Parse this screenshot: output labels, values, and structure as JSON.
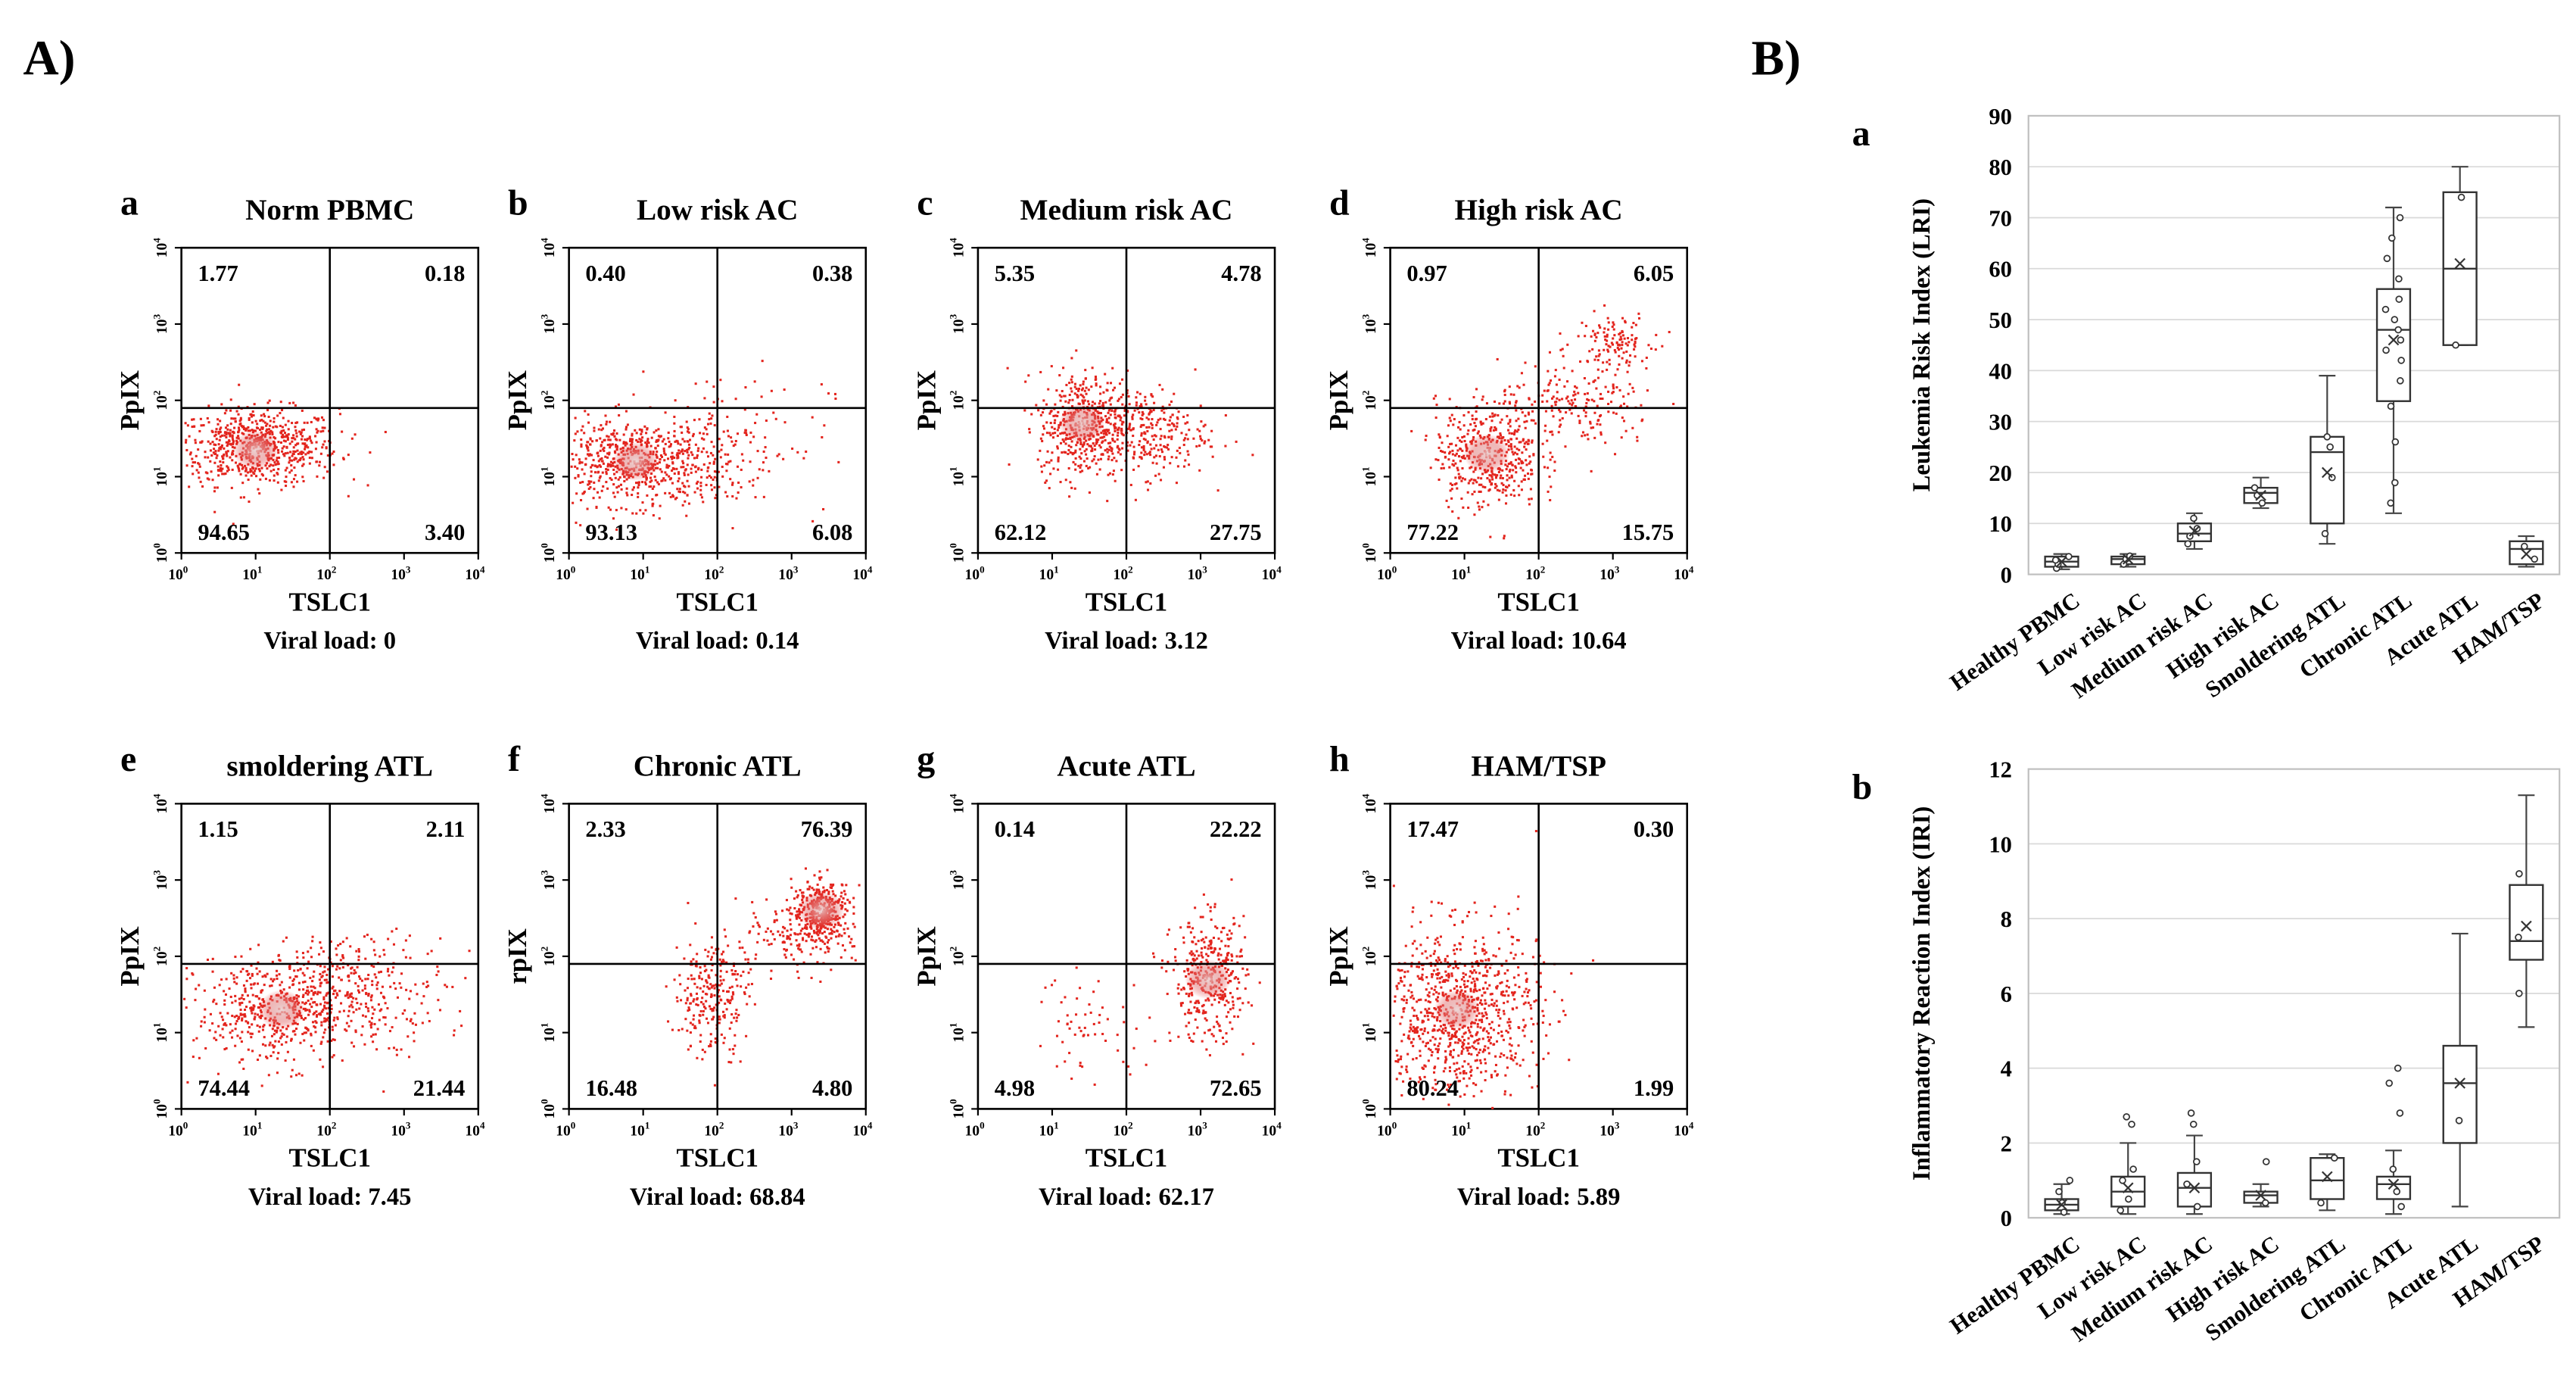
{
  "panel_labels": {
    "A": "A)",
    "B": "B)"
  },
  "flow": {
    "xlabel": "TSLC1",
    "ylabel_default": "PpIX",
    "ylabel_f": "rpIX",
    "viral_prefix": "Viral load:",
    "tick_exponents": [
      "0",
      "1",
      "2",
      "3",
      "4"
    ],
    "panels": [
      {
        "id": "a",
        "title": "Norm PBMC",
        "ylabel": "PpIX",
        "quadrants": {
          "ul": "1.77",
          "ur": "0.18",
          "ll": "94.65",
          "lr": "3.40"
        },
        "viral": "0"
      },
      {
        "id": "b",
        "title": "Low risk AC",
        "ylabel": "PpIX",
        "quadrants": {
          "ul": "0.40",
          "ur": "0.38",
          "ll": "93.13",
          "lr": "6.08"
        },
        "viral": "0.14"
      },
      {
        "id": "c",
        "title": "Medium risk AC",
        "ylabel": "PpIX",
        "quadrants": {
          "ul": "5.35",
          "ur": "4.78",
          "ll": "62.12",
          "lr": "27.75"
        },
        "viral": "3.12"
      },
      {
        "id": "d",
        "title": "High risk AC",
        "ylabel": "PpIX",
        "quadrants": {
          "ul": "0.97",
          "ur": "6.05",
          "ll": "77.22",
          "lr": "15.75"
        },
        "viral": "10.64"
      },
      {
        "id": "e",
        "title": "smoldering ATL",
        "ylabel": "PpIX",
        "quadrants": {
          "ul": "1.15",
          "ur": "2.11",
          "ll": "74.44",
          "lr": "21.44"
        },
        "viral": "7.45"
      },
      {
        "id": "f",
        "title": "Chronic ATL",
        "ylabel": "rpIX",
        "quadrants": {
          "ul": "2.33",
          "ur": "76.39",
          "ll": "16.48",
          "lr": "4.80"
        },
        "viral": "68.84"
      },
      {
        "id": "g",
        "title": "Acute ATL",
        "ylabel": "PpIX",
        "quadrants": {
          "ul": "0.14",
          "ur": "22.22",
          "ll": "4.98",
          "lr": "72.65"
        },
        "viral": "62.17"
      },
      {
        "id": "h",
        "title": "HAM/TSP",
        "ylabel": "PpIX",
        "quadrants": {
          "ul": "17.47",
          "ur": "0.30",
          "ll": "80.24",
          "lr": "1.99"
        },
        "viral": "5.89"
      }
    ]
  },
  "chart_data": [
    {
      "type": "box",
      "id": "a",
      "ylabel": "Leukemia Risk Index (LRI)",
      "ylim": [
        0,
        90
      ],
      "yticks": [
        0,
        10,
        20,
        30,
        40,
        50,
        60,
        70,
        80,
        90
      ],
      "categories": [
        "Healthy PBMC",
        "Low risk AC",
        "Medium risk AC",
        "High risk AC",
        "Smoldering ATL",
        "Chronic ATL",
        "Acute ATL",
        "HAM/TSP"
      ],
      "boxes": [
        {
          "min": 1,
          "q1": 1.5,
          "median": 2.5,
          "q3": 3.5,
          "max": 4,
          "mean": 2.5,
          "points": [
            1.2,
            2,
            2.8,
            3.5
          ]
        },
        {
          "min": 1.5,
          "q1": 2,
          "median": 3,
          "q3": 3.5,
          "max": 4,
          "mean": 3,
          "points": [
            2,
            3,
            3.6
          ]
        },
        {
          "min": 5,
          "q1": 6.5,
          "median": 8,
          "q3": 10,
          "max": 12,
          "mean": 8.5,
          "points": [
            6,
            7.5,
            9,
            11
          ]
        },
        {
          "min": 13,
          "q1": 14,
          "median": 16,
          "q3": 17,
          "max": 19,
          "mean": 15.5,
          "points": [
            14,
            15.5,
            17
          ]
        },
        {
          "min": 6,
          "q1": 10,
          "median": 24,
          "q3": 27,
          "max": 39,
          "mean": 20,
          "points": [
            8,
            19,
            25,
            27
          ]
        },
        {
          "min": 12,
          "q1": 34,
          "median": 48,
          "q3": 56,
          "max": 72,
          "mean": 46,
          "points": [
            14,
            18,
            26,
            33,
            38,
            42,
            44,
            46,
            48,
            50,
            52,
            54,
            58,
            62,
            66,
            70
          ]
        },
        {
          "min": 45,
          "q1": 45,
          "median": 60,
          "q3": 75,
          "max": 80,
          "mean": 61,
          "points": [
            45,
            74
          ]
        },
        {
          "min": 1.5,
          "q1": 2,
          "median": 5,
          "q3": 6.5,
          "max": 7.5,
          "mean": 4,
          "points": [
            3,
            5.5
          ]
        }
      ]
    },
    {
      "type": "box",
      "id": "b",
      "ylabel": "Inflammatory Reaction Index (IRI)",
      "ylim": [
        0,
        12
      ],
      "yticks": [
        0,
        2,
        4,
        6,
        8,
        10,
        12
      ],
      "categories": [
        "Healthy PBMC",
        "Low risk AC",
        "Medium risk AC",
        "High risk AC",
        "Smoldering ATL",
        "Chronic ATL",
        "Acute ATL",
        "HAM/TSP"
      ],
      "boxes": [
        {
          "min": 0.1,
          "q1": 0.2,
          "median": 0.35,
          "q3": 0.5,
          "max": 0.9,
          "mean": 0.35,
          "points": [
            0.15,
            0.4,
            0.7,
            1.0
          ]
        },
        {
          "min": 0.1,
          "q1": 0.3,
          "median": 0.7,
          "q3": 1.1,
          "max": 2.0,
          "mean": 0.8,
          "points": [
            0.2,
            0.5,
            1.0,
            1.3,
            2.5,
            2.7
          ]
        },
        {
          "min": 0.1,
          "q1": 0.3,
          "median": 0.8,
          "q3": 1.2,
          "max": 2.2,
          "mean": 0.8,
          "points": [
            0.3,
            0.9,
            1.5,
            2.5,
            2.8
          ]
        },
        {
          "min": 0.3,
          "q1": 0.4,
          "median": 0.6,
          "q3": 0.7,
          "max": 0.9,
          "mean": 0.6,
          "points": [
            0.4,
            1.5
          ]
        },
        {
          "min": 0.2,
          "q1": 0.5,
          "median": 1.0,
          "q3": 1.6,
          "max": 1.7,
          "mean": 1.1,
          "points": [
            0.4,
            1.6
          ]
        },
        {
          "min": 0.1,
          "q1": 0.5,
          "median": 0.9,
          "q3": 1.1,
          "max": 1.8,
          "mean": 0.9,
          "points": [
            0.3,
            0.7,
            1.3,
            2.8,
            3.6,
            4.0
          ]
        },
        {
          "min": 0.3,
          "q1": 2.0,
          "median": 3.6,
          "q3": 4.6,
          "max": 7.6,
          "mean": 3.6,
          "points": [
            2.6
          ]
        },
        {
          "min": 5.1,
          "q1": 6.9,
          "median": 7.4,
          "q3": 8.9,
          "max": 11.3,
          "mean": 7.8,
          "points": [
            6.0,
            7.5,
            9.2
          ]
        }
      ]
    }
  ]
}
